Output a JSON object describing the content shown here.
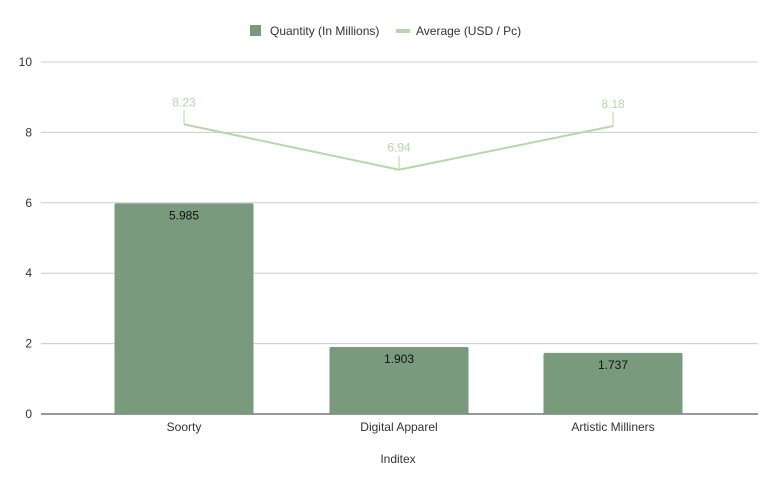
{
  "chart_data": {
    "type": "bar",
    "title": "",
    "xlabel": "Inditex",
    "ylabel": "",
    "categories": [
      "Soorty",
      "Digital Apparel",
      "Artistic Milliners"
    ],
    "ylim": [
      0,
      10
    ],
    "yticks": [
      0,
      2,
      4,
      6,
      8,
      10
    ],
    "yticks_labels": [
      "0",
      "2",
      "4",
      "6",
      "8",
      "10"
    ],
    "grid": true,
    "legend_position": "top-center",
    "series": [
      {
        "name": "Quantity (In Millions)",
        "kind": "bar",
        "color": "#7a9a7e",
        "values": [
          5.985,
          1.903,
          1.737
        ],
        "value_labels": [
          "5.985",
          "1.903",
          "1.737"
        ]
      },
      {
        "name": "Average (USD / Pc)",
        "kind": "line",
        "color": "#b6d7a8",
        "values": [
          8.23,
          6.94,
          8.18
        ],
        "value_labels": [
          "8.23",
          "6.94",
          "8.18"
        ]
      }
    ]
  }
}
